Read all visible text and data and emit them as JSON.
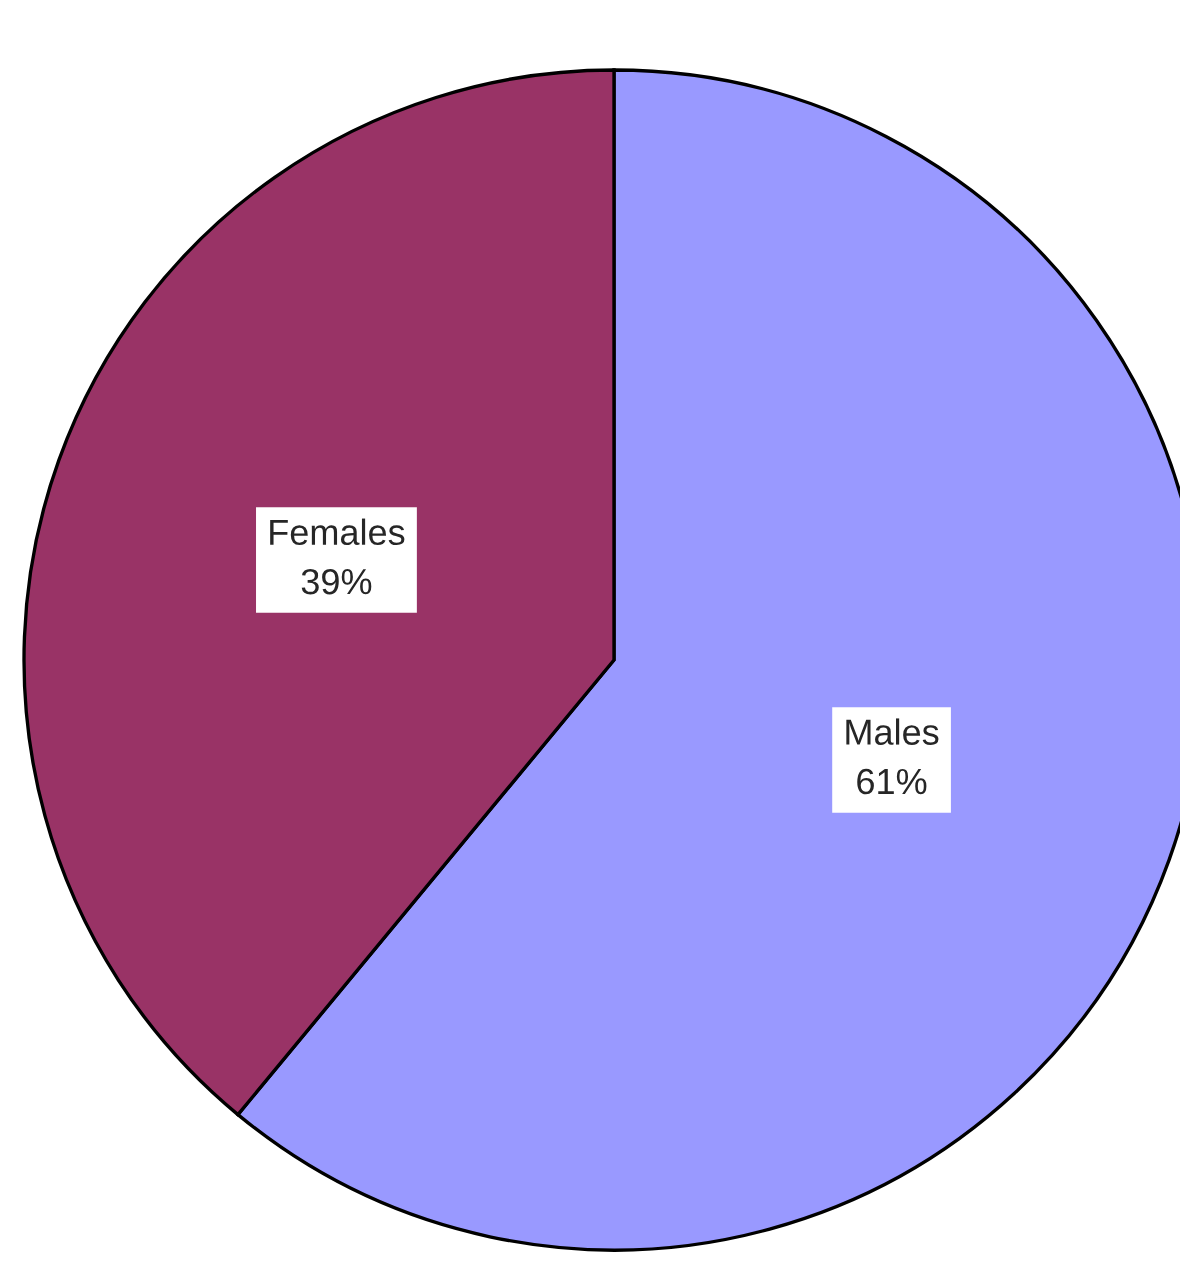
{
  "chart_data": {
    "type": "pie",
    "categories": [
      "Males",
      "Females"
    ],
    "values": [
      61,
      39
    ],
    "value_labels": [
      "61%",
      "39%"
    ],
    "colors": [
      "#9999ff",
      "#993366"
    ],
    "legend": false
  }
}
